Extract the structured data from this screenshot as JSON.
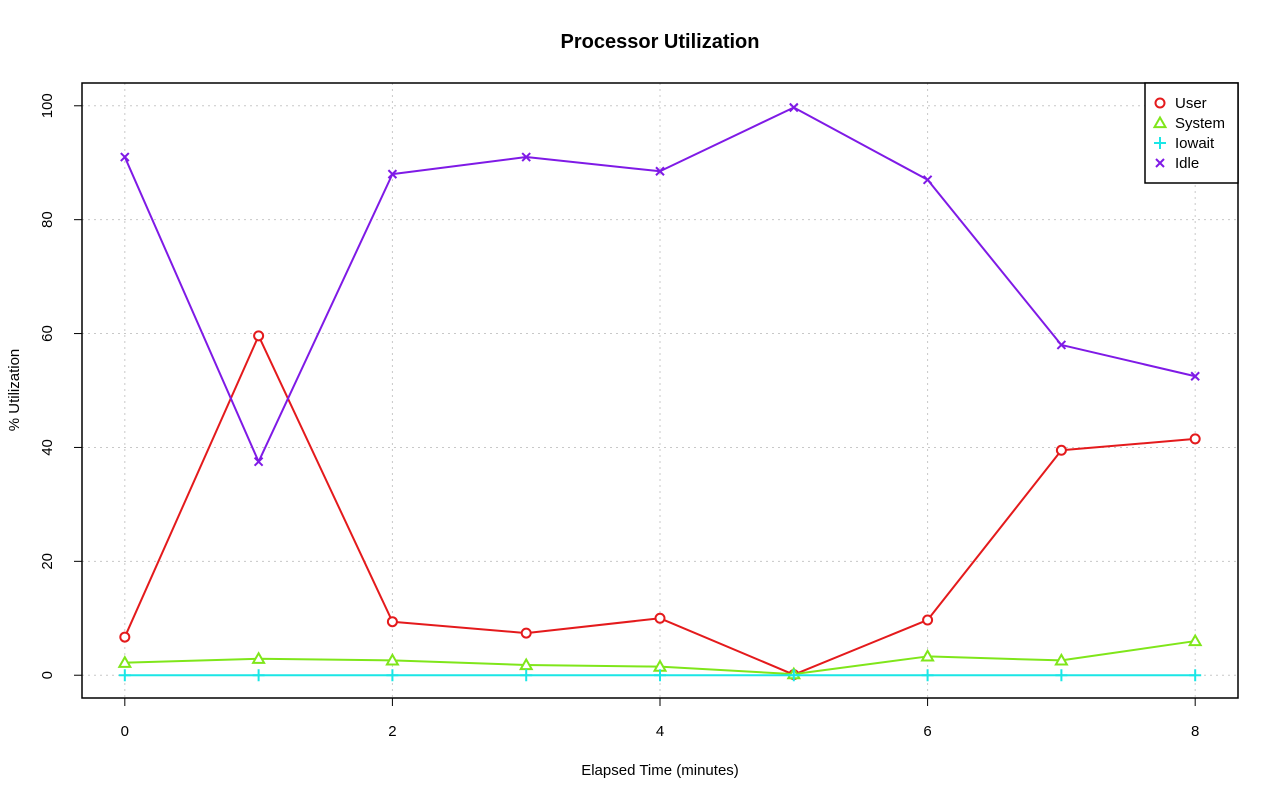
{
  "chart_data": {
    "type": "line",
    "title": "Processor Utilization",
    "xlabel": "Elapsed Time (minutes)",
    "ylabel": "% Utilization",
    "x": [
      0,
      1,
      2,
      3,
      4,
      5,
      6,
      7,
      8
    ],
    "xlim": [
      -0.32,
      8.32
    ],
    "ylim": [
      -4,
      104
    ],
    "x_ticks": [
      0,
      2,
      4,
      6,
      8
    ],
    "y_ticks": [
      0,
      20,
      40,
      60,
      80,
      100
    ],
    "grid": true,
    "legend_position": "top-right",
    "series": [
      {
        "name": "User",
        "color": "#e41a1c",
        "marker": "circle",
        "values": [
          6.7,
          59.6,
          9.4,
          7.4,
          10.0,
          0.1,
          9.7,
          39.5,
          41.5
        ]
      },
      {
        "name": "System",
        "color": "#7fe61a",
        "marker": "triangle",
        "values": [
          2.2,
          2.9,
          2.6,
          1.8,
          1.5,
          0.2,
          3.3,
          2.6,
          6.0
        ]
      },
      {
        "name": "Iowait",
        "color": "#1ae6e6",
        "marker": "plus",
        "values": [
          0,
          0,
          0,
          0,
          0,
          0,
          0,
          0,
          0
        ]
      },
      {
        "name": "Idle",
        "color": "#7f1ae6",
        "marker": "cross",
        "values": [
          91.0,
          37.5,
          88.0,
          91.0,
          88.5,
          99.7,
          87.0,
          58.0,
          52.5
        ]
      }
    ]
  }
}
